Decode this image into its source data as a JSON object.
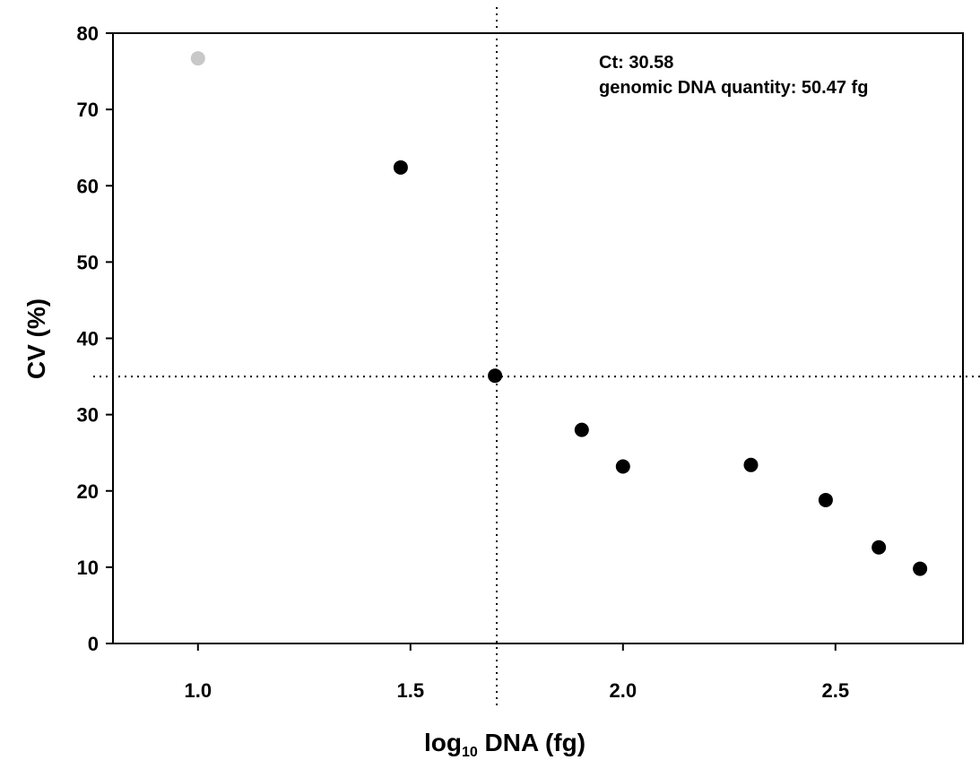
{
  "chart_data": {
    "type": "scatter",
    "title": "",
    "xlabel_main": "log",
    "xlabel_sub": "10",
    "xlabel_rest": " DNA (fg)",
    "ylabel": "CV (%)",
    "xlim": [
      0.8,
      2.8
    ],
    "ylim": [
      0,
      80
    ],
    "xticks": [
      1.0,
      1.5,
      2.0,
      2.5
    ],
    "xtick_labels": [
      "1.0",
      "1.5",
      "2.0",
      "2.5"
    ],
    "yticks": [
      0,
      10,
      20,
      30,
      40,
      50,
      60,
      70,
      80
    ],
    "ytick_labels": [
      "0",
      "10",
      "20",
      "30",
      "40",
      "50",
      "60",
      "70",
      "80"
    ],
    "grid": false,
    "points": [
      {
        "x": 1.0,
        "y": 76.7,
        "color": "#c8c8c8"
      },
      {
        "x": 1.477,
        "y": 62.4,
        "color": "#000000"
      },
      {
        "x": 1.699,
        "y": 35.1,
        "color": "#000000"
      },
      {
        "x": 1.903,
        "y": 28.0,
        "color": "#000000"
      },
      {
        "x": 2.0,
        "y": 23.2,
        "color": "#000000"
      },
      {
        "x": 2.301,
        "y": 23.4,
        "color": "#000000"
      },
      {
        "x": 2.477,
        "y": 18.8,
        "color": "#000000"
      },
      {
        "x": 2.602,
        "y": 12.6,
        "color": "#000000"
      },
      {
        "x": 2.699,
        "y": 9.8,
        "color": "#000000"
      }
    ],
    "reference_lines": {
      "x": 1.703,
      "y": 35.0
    },
    "annotations": [
      "Ct: 30.58",
      "genomic DNA quantity: 50.47 fg"
    ]
  }
}
